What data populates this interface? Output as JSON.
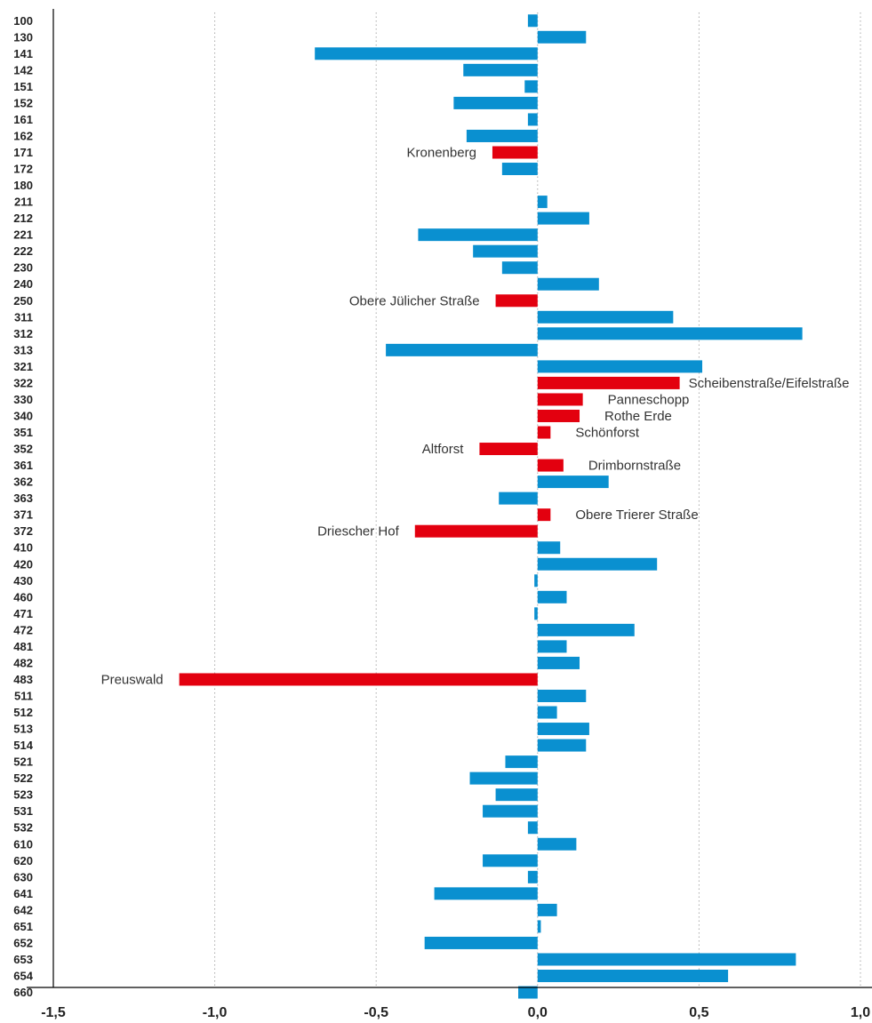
{
  "chart_data": {
    "type": "bar",
    "orientation": "horizontal",
    "title": "",
    "xlabel": "",
    "ylabel": "",
    "xlim": [
      -1.5,
      1.0
    ],
    "x_ticks": [
      -1.5,
      -1.0,
      -0.5,
      0.0,
      0.5,
      1.0
    ],
    "x_tick_labels": [
      "-1,5",
      "-1,0",
      "-0,5",
      "0,0",
      "0,5",
      "1,0"
    ],
    "grid": "vertical dotted",
    "colors": {
      "default": "#0a90d0",
      "highlight": "#e3000f"
    },
    "categories": [
      "100",
      "130",
      "141",
      "142",
      "151",
      "152",
      "161",
      "162",
      "171",
      "172",
      "180",
      "211",
      "212",
      "221",
      "222",
      "230",
      "240",
      "250",
      "311",
      "312",
      "313",
      "321",
      "322",
      "330",
      "340",
      "351",
      "352",
      "361",
      "362",
      "363",
      "371",
      "372",
      "410",
      "420",
      "430",
      "460",
      "471",
      "472",
      "481",
      "482",
      "483",
      "511",
      "512",
      "513",
      "514",
      "521",
      "522",
      "523",
      "531",
      "532",
      "610",
      "620",
      "630",
      "641",
      "642",
      "651",
      "652",
      "653",
      "654",
      "660"
    ],
    "values": [
      -0.03,
      0.15,
      -0.69,
      -0.23,
      -0.04,
      -0.26,
      -0.03,
      -0.22,
      -0.14,
      -0.11,
      0,
      0.03,
      0.16,
      -0.37,
      -0.2,
      -0.11,
      0.19,
      -0.13,
      0.42,
      0.82,
      -0.47,
      0.51,
      0.44,
      0.14,
      0.13,
      0.04,
      -0.18,
      0.08,
      0.22,
      -0.12,
      0.04,
      -0.38,
      0.07,
      0.37,
      -0.01,
      0.09,
      -0.01,
      0.3,
      0.09,
      0.13,
      -1.11,
      0.15,
      0.06,
      0.16,
      0.15,
      -0.1,
      -0.21,
      -0.13,
      -0.17,
      -0.03,
      0.12,
      -0.17,
      -0.03,
      -0.32,
      0.06,
      0.01,
      -0.35,
      0.8,
      0.59,
      -0.06
    ],
    "highlights": [
      {
        "category": "171",
        "label": "Kronenberg"
      },
      {
        "category": "250",
        "label": "Obere Jülicher Straße"
      },
      {
        "category": "322",
        "label": "Scheibenstraße/Eifelstraße"
      },
      {
        "category": "330",
        "label": "Panneschopp"
      },
      {
        "category": "340",
        "label": "Rothe Erde"
      },
      {
        "category": "351",
        "label": "Schönforst"
      },
      {
        "category": "352",
        "label": "Altforst"
      },
      {
        "category": "361",
        "label": "Drimbornstraße"
      },
      {
        "category": "371",
        "label": "Obere Trierer Straße"
      },
      {
        "category": "372",
        "label": "Driescher Hof"
      },
      {
        "category": "483",
        "label": "Preuswald"
      }
    ]
  }
}
